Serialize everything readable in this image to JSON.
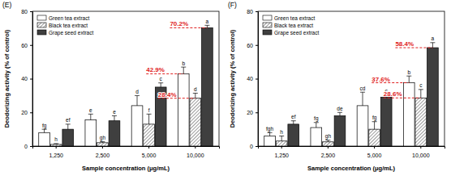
{
  "chart_data": [
    {
      "type": "bar",
      "title": "(E)",
      "x_label": "Sample concentration (μg/mL)",
      "y_label": "Deodorizing activity (% of control)",
      "categories": [
        "1,250",
        "2,500",
        "5,000",
        "10,000"
      ],
      "series": [
        {
          "name": "Green tea extract",
          "color": "#ffffff",
          "values": [
            8,
            15.5,
            24,
            42.9
          ],
          "errors": [
            2,
            3.5,
            6,
            4
          ],
          "letters": [
            "fg",
            "e",
            "d",
            "b"
          ]
        },
        {
          "name": "Black tea extract",
          "color": "#bfbfbf",
          "values": [
            1,
            2,
            13,
            28.4
          ],
          "errors": [
            0.5,
            0.6,
            6,
            3
          ],
          "letters": [
            "h",
            "gh",
            "f",
            "d"
          ]
        },
        {
          "name": "Grape seed extract",
          "color": "#3f3f3f",
          "values": [
            10,
            15,
            35,
            70.2
          ],
          "errors": [
            3,
            3,
            2.5,
            1.5
          ],
          "letters": [
            "ef",
            "e",
            "c",
            "a"
          ]
        }
      ],
      "annotations": [
        {
          "text": "70.2%",
          "x": "10,000",
          "y": 70.2,
          "series": "Grape seed extract"
        },
        {
          "text": "42.9%",
          "x": "10,000",
          "y": 42.9,
          "series": "Green tea extract"
        },
        {
          "text": "28.4%",
          "x": "10,000",
          "y": 28.4,
          "series": "Black tea extract"
        }
      ],
      "ylim": [
        0,
        80
      ],
      "yticks": [
        0,
        20,
        40,
        60,
        80
      ],
      "legend": "upper left"
    },
    {
      "type": "bar",
      "title": "(F)",
      "x_label": "Sample concentration (μg/mL)",
      "y_label": "Deodorizing activity (% of control)",
      "categories": [
        "1,250",
        "2,500",
        "5,000",
        "10,000"
      ],
      "series": [
        {
          "name": "Green tea extract",
          "color": "#ffffff",
          "values": [
            6,
            11,
            24,
            37.6
          ],
          "errors": [
            2,
            3,
            8,
            4
          ],
          "letters": [
            "fgh",
            "fg",
            "cd",
            "b"
          ]
        },
        {
          "name": "Black tea extract",
          "color": "#bfbfbf",
          "values": [
            3,
            2.5,
            10,
            28.6
          ],
          "errors": [
            3,
            1,
            4.5,
            5
          ],
          "letters": [
            "h",
            "gh",
            "fg",
            "c"
          ]
        },
        {
          "name": "Grape seed extract",
          "color": "#3f3f3f",
          "values": [
            13,
            18,
            29,
            58.4
          ],
          "errors": [
            2,
            2,
            1.5,
            3
          ],
          "letters": [
            "ef",
            "de",
            "c",
            "a"
          ]
        }
      ],
      "annotations": [
        {
          "text": "58.4%",
          "x": "10,000",
          "y": 58.4,
          "series": "Grape seed extract"
        },
        {
          "text": "37.6%",
          "x": "10,000",
          "y": 37.6,
          "series": "Green tea extract"
        },
        {
          "text": "28.6%",
          "x": "10,000",
          "y": 28.6,
          "series": "Black tea extract"
        }
      ],
      "ylim": [
        0,
        80
      ],
      "yticks": [
        0,
        20,
        40,
        60,
        80
      ],
      "legend": "upper left"
    }
  ]
}
